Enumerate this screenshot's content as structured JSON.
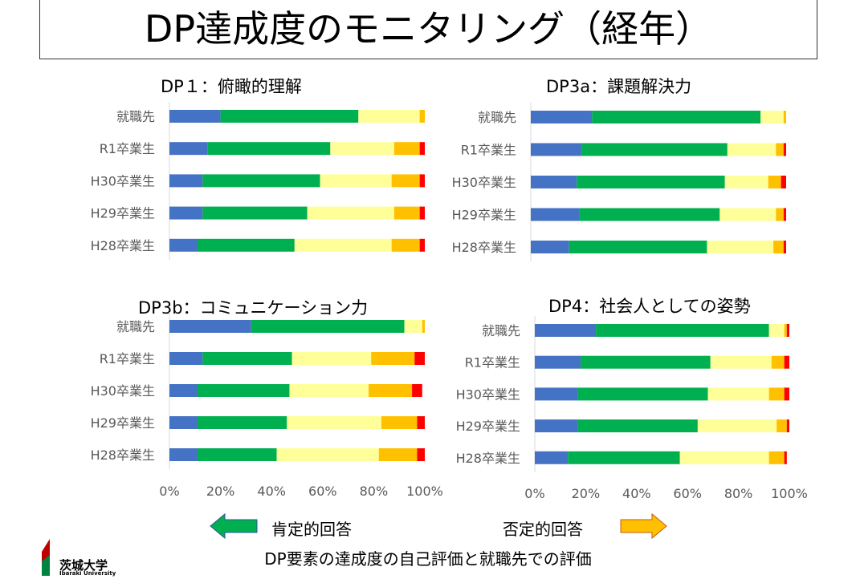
{
  "page": {
    "title": "DP達成度のモニタリング（経年）",
    "legend_positive": "肯定的回答",
    "legend_negative": "否定的回答",
    "footer": "DP要素の達成度の自己評価と就職先での評価",
    "logo_name": "茨城大学",
    "logo_sub": "Ibaraki University"
  },
  "colors": {
    "series": [
      "#4472C4",
      "#00B050",
      "#FFFF99",
      "#FFC000",
      "#FF0000"
    ],
    "arrow_positive": "#00B050",
    "arrow_negative": "#FFC000",
    "logo_red": "#C00000",
    "logo_green": "#00833E"
  },
  "chart_data": [
    {
      "type": "bar",
      "stacked": true,
      "orientation": "horizontal",
      "title": "DP１：俯瞰的理解",
      "categories": [
        "就職先",
        "R1卒業生",
        "H30卒業生",
        "H29卒業生",
        "H28卒業生"
      ],
      "series": [
        {
          "values": [
            20,
            15,
            13,
            13,
            11
          ]
        },
        {
          "values": [
            54,
            48,
            46,
            41,
            38
          ]
        },
        {
          "values": [
            24,
            25,
            28,
            34,
            38
          ]
        },
        {
          "values": [
            2,
            10,
            11,
            10,
            11
          ]
        },
        {
          "values": [
            0,
            2,
            2,
            2,
            2
          ]
        }
      ],
      "xlim": [
        0,
        100
      ],
      "x_ticks": [
        "0%",
        "20%",
        "40%",
        "60%",
        "80%",
        "100%"
      ],
      "show_x_ticks": false,
      "grid": false
    },
    {
      "type": "bar",
      "stacked": true,
      "orientation": "horizontal",
      "title": "DP3a：課題解決力",
      "categories": [
        "就職先",
        "R1卒業生",
        "H30卒業生",
        "H29卒業生",
        "H28卒業生"
      ],
      "series": [
        {
          "values": [
            24,
            20,
            18,
            19,
            15
          ]
        },
        {
          "values": [
            66,
            57,
            58,
            55,
            54
          ]
        },
        {
          "values": [
            9,
            19,
            17,
            22,
            26
          ]
        },
        {
          "values": [
            1,
            3,
            5,
            3,
            4
          ]
        },
        {
          "values": [
            0,
            1,
            2,
            1,
            1
          ]
        }
      ],
      "xlim": [
        0,
        100
      ],
      "x_ticks": [
        "0%",
        "20%",
        "40%",
        "60%",
        "80%",
        "100%"
      ],
      "show_x_ticks": false,
      "grid": false
    },
    {
      "type": "bar",
      "stacked": true,
      "orientation": "horizontal",
      "title": "DP3b：コミュニケーション力",
      "categories": [
        "就職先",
        "R1卒業生",
        "H30卒業生",
        "H29卒業生",
        "H28卒業生"
      ],
      "series": [
        {
          "values": [
            32,
            13,
            11,
            11,
            11
          ]
        },
        {
          "values": [
            60,
            35,
            36,
            35,
            31
          ]
        },
        {
          "values": [
            7,
            31,
            31,
            37,
            40
          ]
        },
        {
          "values": [
            1,
            17,
            17,
            14,
            15
          ]
        },
        {
          "values": [
            0,
            4,
            4,
            3,
            3
          ]
        }
      ],
      "xlim": [
        0,
        100
      ],
      "x_ticks": [
        "0%",
        "20%",
        "40%",
        "60%",
        "80%",
        "100%"
      ],
      "show_x_ticks": true,
      "grid": false
    },
    {
      "type": "bar",
      "stacked": true,
      "orientation": "horizontal",
      "title": "DP4：社会人としての姿勢",
      "categories": [
        "就職先",
        "R1卒業生",
        "H30卒業生",
        "H29卒業生",
        "H28卒業生"
      ],
      "series": [
        {
          "values": [
            24,
            18,
            17,
            17,
            13
          ]
        },
        {
          "values": [
            68,
            51,
            51,
            47,
            44
          ]
        },
        {
          "values": [
            6,
            24,
            24,
            31,
            35
          ]
        },
        {
          "values": [
            1,
            5,
            6,
            4,
            6
          ]
        },
        {
          "values": [
            1,
            2,
            2,
            1,
            1
          ]
        }
      ],
      "xlim": [
        0,
        100
      ],
      "x_ticks": [
        "0%",
        "20%",
        "40%",
        "60%",
        "80%",
        "100%"
      ],
      "show_x_ticks": true,
      "grid": false
    }
  ]
}
